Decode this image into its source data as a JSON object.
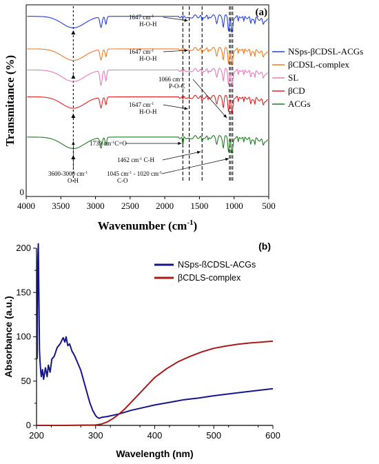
{
  "chart_data": [
    {
      "type": "line",
      "panel": "(a)",
      "xlabel": "Wavenumber (cm",
      "xlabel_sup": "-1",
      "xlabel_end": ")",
      "ylabel": "Transmitance (%)",
      "xlim": [
        4000,
        500
      ],
      "x_ticks": [
        "4000",
        "3500",
        "3000",
        "2500",
        "2000",
        "1500",
        "1000",
        "500"
      ],
      "y_tick_label": "0",
      "series": [
        {
          "name": "NSps-βCDSL-ACGs",
          "color": "#1f3ee0",
          "offset": 0.94
        },
        {
          "name": "βCDSL-complex",
          "color": "#f07820",
          "offset": 0.77
        },
        {
          "name": "SL",
          "color": "#e879b8",
          "offset": 0.66
        },
        {
          "name": "βCD",
          "color": "#e02020",
          "offset": 0.52
        },
        {
          "name": "ACGs",
          "color": "#207a20",
          "offset": 0.31
        }
      ],
      "annotations": [
        {
          "text": "1647 cm",
          "sup": "-1",
          "line2": "H-O-H",
          "x": 1647,
          "y": 0.87
        },
        {
          "text": "1647 cm",
          "sup": "-1",
          "line2": "H-O-H",
          "x": 1647,
          "y": 0.71
        },
        {
          "text": "1066 cm",
          "sup": "-1",
          "line2": "P-O-C",
          "x": 1066,
          "y": 0.58
        },
        {
          "text": "1647 cm",
          "sup": "-1",
          "line2": "H-O-H",
          "x": 1647,
          "y": 0.48
        },
        {
          "text": "1739 cm",
          "sup": "-1",
          "line1_end": "C=O",
          "x": 1739,
          "y": 0.25
        },
        {
          "text": "1462 cm",
          "sup": "-1",
          "line1_end": " C-H",
          "x": 1462,
          "y": 0.19
        },
        {
          "text": "1045 cm",
          "sup": "-1",
          "line1_end": " - 1020 cm",
          "sup2": "-1",
          "line2": "C-O",
          "x": 1035,
          "y": 0.13
        },
        {
          "text": "3600-3000 cm",
          "sup": "-1",
          "line2": "O-H",
          "x": 3320,
          "y": 0.09
        }
      ],
      "reference_lines_x": [
        3320,
        1739,
        1647,
        1462,
        1066,
        1045,
        1020
      ]
    },
    {
      "type": "line",
      "panel": "(b)",
      "xlabel": "Wavelength (nm)",
      "ylabel": "Absorbance (a.u.)",
      "xlim": [
        200,
        600
      ],
      "ylim": [
        0,
        200
      ],
      "x_ticks": [
        "200",
        "300",
        "400",
        "500",
        "600"
      ],
      "y_ticks": [
        "0",
        "50",
        "100",
        "150",
        "200"
      ],
      "series": [
        {
          "name": "NSps-ßCDSL-ACGs",
          "color": "#15158a",
          "x": [
            201,
            202,
            203,
            204,
            205,
            206,
            207,
            208,
            210,
            212,
            215,
            218,
            220,
            223,
            226,
            230,
            235,
            240,
            245,
            248,
            250,
            253,
            256,
            260,
            265,
            270,
            275,
            280,
            285,
            290,
            295,
            300,
            303,
            306,
            310,
            320,
            340,
            360,
            380,
            400,
            425,
            450,
            475,
            500,
            525,
            550,
            575,
            600
          ],
          "y": [
            75,
            185,
            205,
            150,
            85,
            72,
            62,
            55,
            63,
            52,
            65,
            55,
            68,
            60,
            75,
            78,
            88,
            92,
            99,
            94,
            100,
            90,
            92,
            84,
            78,
            70,
            62,
            50,
            38,
            26,
            17,
            11,
            9,
            8,
            9,
            10,
            13,
            17,
            20,
            23,
            26,
            29,
            31,
            33.5,
            35.5,
            37.5,
            39.5,
            41.5
          ]
        },
        {
          "name": "βCDLS-complex",
          "color": "#a81818",
          "x": [
            200,
            250,
            300,
            310,
            320,
            330,
            340,
            350,
            360,
            370,
            380,
            390,
            400,
            420,
            440,
            460,
            480,
            500,
            520,
            540,
            560,
            580,
            600
          ],
          "y": [
            0,
            0,
            0.5,
            1.5,
            4,
            8,
            13,
            19,
            26,
            33,
            40,
            47,
            54,
            64,
            72,
            78,
            83,
            87,
            89.5,
            91.5,
            93,
            94,
            95
          ]
        }
      ]
    }
  ]
}
